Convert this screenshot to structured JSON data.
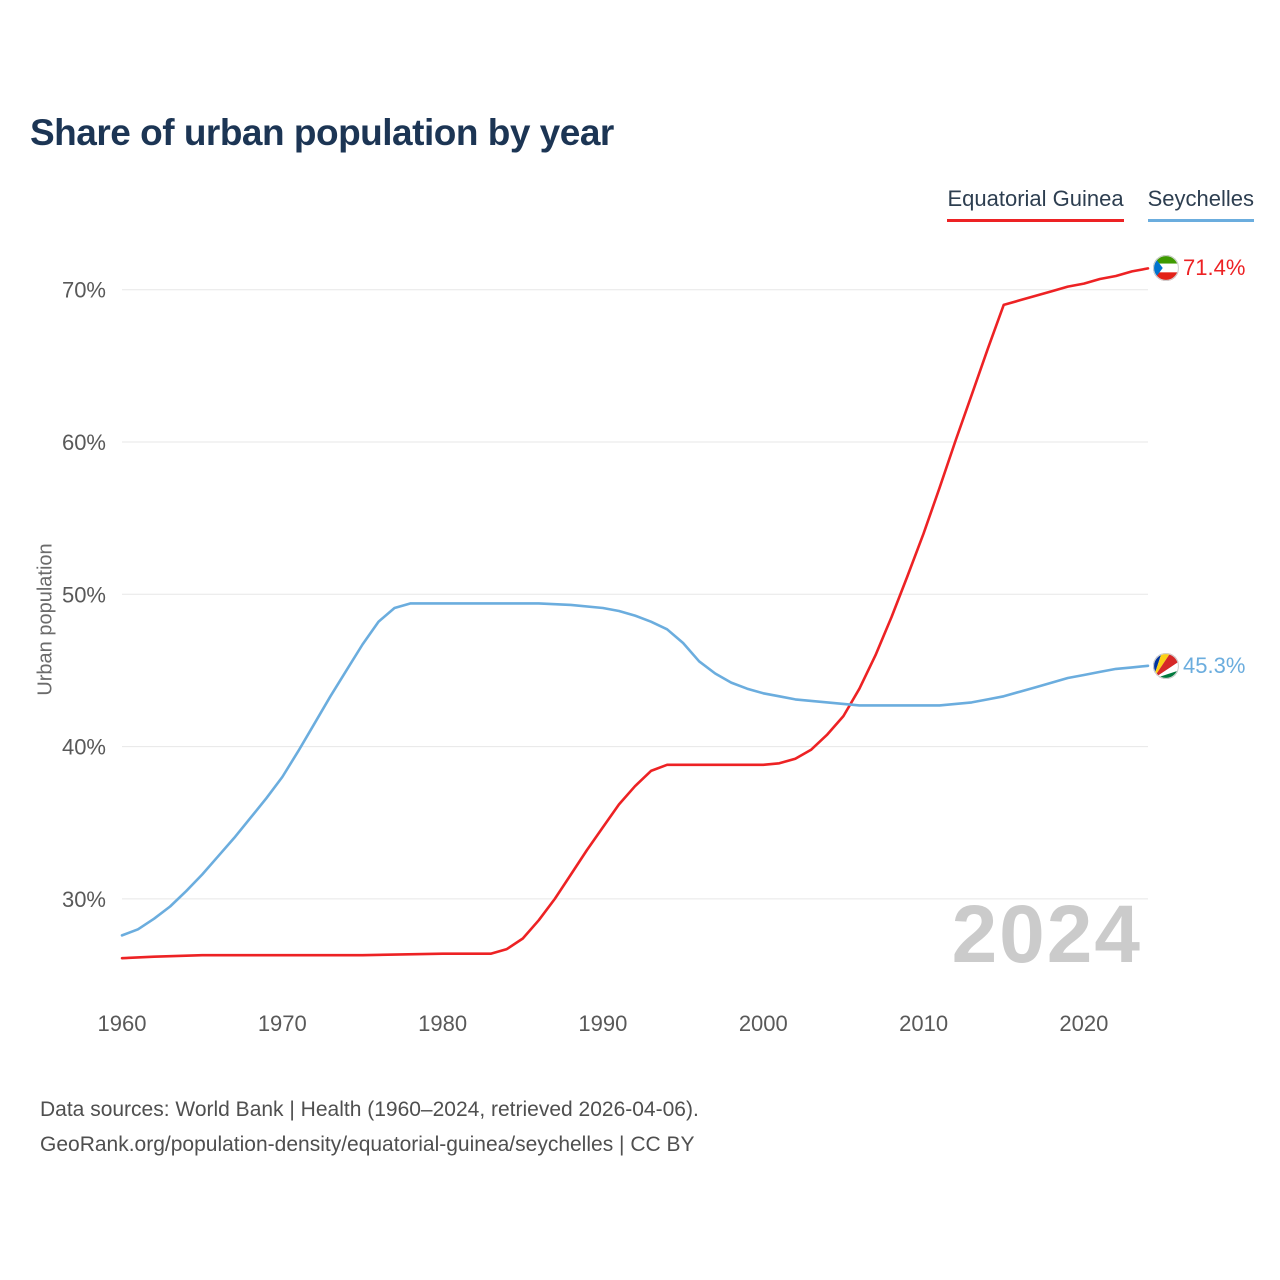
{
  "page": {
    "title": "Share of urban population by year",
    "watermark": "2024",
    "footer_line1": "Data sources: World Bank | Health (1960–2024, retrieved 2026-04-06).",
    "footer_line2": "GeoRank.org/population-density/equatorial-guinea/seychelles | CC BY"
  },
  "legend": [
    {
      "label": "Equatorial Guinea",
      "color": "#ed2224"
    },
    {
      "label": "Seychelles",
      "color": "#6badde"
    }
  ],
  "end_labels": [
    {
      "value": "71.4%",
      "color": "#ed2224",
      "icon": "equatorial-guinea-flag-icon"
    },
    {
      "value": "45.3%",
      "color": "#6badde",
      "icon": "seychelles-flag-icon"
    }
  ],
  "chart_data": {
    "type": "line",
    "title": "Share of urban population by year",
    "xlabel": "",
    "ylabel": "Urban population",
    "xlim": [
      1960,
      2024
    ],
    "ylim": [
      25,
      73
    ],
    "xticks": [
      1960,
      1970,
      1980,
      1990,
      2000,
      2010,
      2020
    ],
    "yticks": [
      30,
      40,
      50,
      60,
      70
    ],
    "ytick_suffix": "%",
    "grid": "horizontal",
    "legend_position": "top-right",
    "series": [
      {
        "name": "Equatorial Guinea",
        "color": "#ed2224",
        "end_label": "71.4%",
        "points": [
          [
            1960,
            26.1
          ],
          [
            1962,
            26.2
          ],
          [
            1965,
            26.3
          ],
          [
            1970,
            26.3
          ],
          [
            1975,
            26.3
          ],
          [
            1980,
            26.4
          ],
          [
            1983,
            26.4
          ],
          [
            1984,
            26.7
          ],
          [
            1985,
            27.4
          ],
          [
            1986,
            28.6
          ],
          [
            1987,
            30.0
          ],
          [
            1988,
            31.6
          ],
          [
            1989,
            33.2
          ],
          [
            1990,
            34.7
          ],
          [
            1991,
            36.2
          ],
          [
            1992,
            37.4
          ],
          [
            1993,
            38.4
          ],
          [
            1994,
            38.8
          ],
          [
            1996,
            38.8
          ],
          [
            1998,
            38.8
          ],
          [
            2000,
            38.8
          ],
          [
            2001,
            38.9
          ],
          [
            2002,
            39.2
          ],
          [
            2003,
            39.8
          ],
          [
            2004,
            40.8
          ],
          [
            2005,
            42.0
          ],
          [
            2006,
            43.8
          ],
          [
            2007,
            46.0
          ],
          [
            2008,
            48.5
          ],
          [
            2009,
            51.2
          ],
          [
            2010,
            54.0
          ],
          [
            2011,
            57.0
          ],
          [
            2012,
            60.1
          ],
          [
            2013,
            63.1
          ],
          [
            2014,
            66.1
          ],
          [
            2015,
            69.0
          ],
          [
            2016,
            69.3
          ],
          [
            2017,
            69.6
          ],
          [
            2018,
            69.9
          ],
          [
            2019,
            70.2
          ],
          [
            2020,
            70.4
          ],
          [
            2021,
            70.7
          ],
          [
            2022,
            70.9
          ],
          [
            2023,
            71.2
          ],
          [
            2024,
            71.4
          ]
        ]
      },
      {
        "name": "Seychelles",
        "color": "#6badde",
        "end_label": "45.3%",
        "points": [
          [
            1960,
            27.6
          ],
          [
            1961,
            28.0
          ],
          [
            1962,
            28.7
          ],
          [
            1963,
            29.5
          ],
          [
            1964,
            30.5
          ],
          [
            1965,
            31.6
          ],
          [
            1966,
            32.8
          ],
          [
            1967,
            34.0
          ],
          [
            1968,
            35.3
          ],
          [
            1969,
            36.6
          ],
          [
            1970,
            38.0
          ],
          [
            1971,
            39.7
          ],
          [
            1972,
            41.5
          ],
          [
            1973,
            43.3
          ],
          [
            1974,
            45.0
          ],
          [
            1975,
            46.7
          ],
          [
            1976,
            48.2
          ],
          [
            1977,
            49.1
          ],
          [
            1978,
            49.4
          ],
          [
            1980,
            49.4
          ],
          [
            1982,
            49.4
          ],
          [
            1984,
            49.4
          ],
          [
            1986,
            49.4
          ],
          [
            1988,
            49.3
          ],
          [
            1990,
            49.1
          ],
          [
            1991,
            48.9
          ],
          [
            1992,
            48.6
          ],
          [
            1993,
            48.2
          ],
          [
            1994,
            47.7
          ],
          [
            1995,
            46.8
          ],
          [
            1996,
            45.6
          ],
          [
            1997,
            44.8
          ],
          [
            1998,
            44.2
          ],
          [
            1999,
            43.8
          ],
          [
            2000,
            43.5
          ],
          [
            2001,
            43.3
          ],
          [
            2002,
            43.1
          ],
          [
            2003,
            43.0
          ],
          [
            2004,
            42.9
          ],
          [
            2005,
            42.8
          ],
          [
            2006,
            42.7
          ],
          [
            2007,
            42.7
          ],
          [
            2008,
            42.7
          ],
          [
            2009,
            42.7
          ],
          [
            2010,
            42.7
          ],
          [
            2011,
            42.7
          ],
          [
            2012,
            42.8
          ],
          [
            2013,
            42.9
          ],
          [
            2014,
            43.1
          ],
          [
            2015,
            43.3
          ],
          [
            2016,
            43.6
          ],
          [
            2017,
            43.9
          ],
          [
            2018,
            44.2
          ],
          [
            2019,
            44.5
          ],
          [
            2020,
            44.7
          ],
          [
            2021,
            44.9
          ],
          [
            2022,
            45.1
          ],
          [
            2023,
            45.2
          ],
          [
            2024,
            45.3
          ]
        ]
      }
    ]
  }
}
